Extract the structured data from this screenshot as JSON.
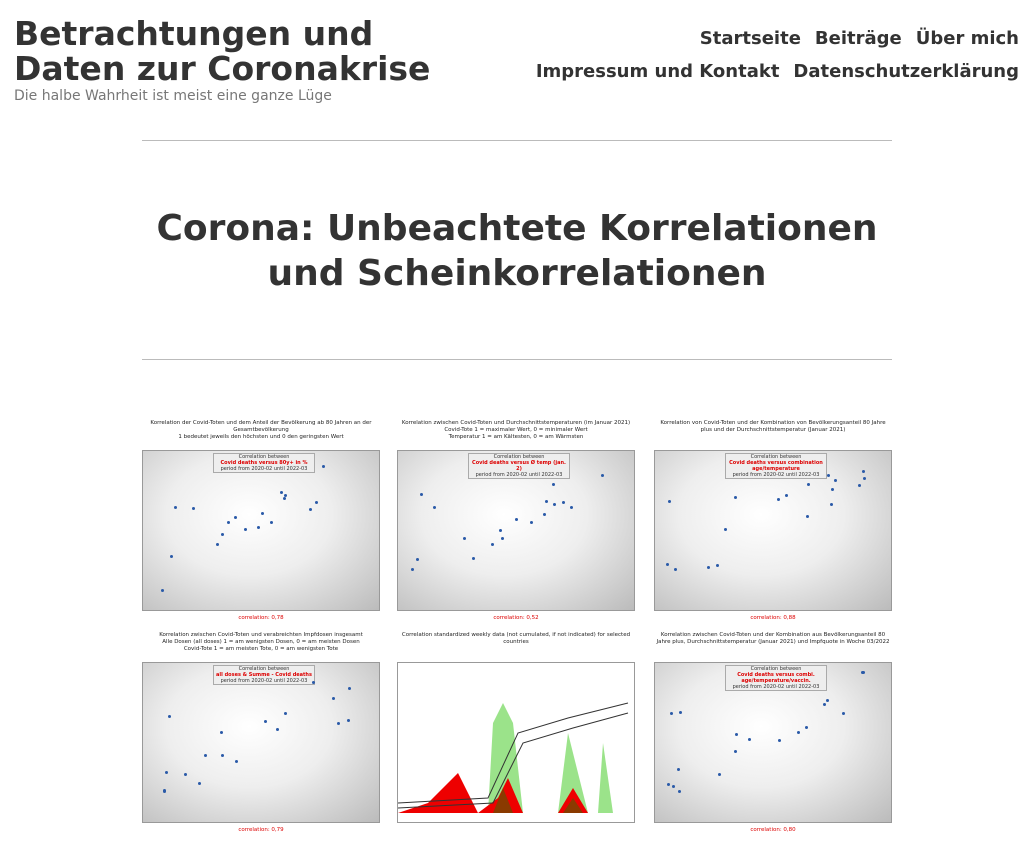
{
  "header": {
    "site_title": "Betrachtungen und Daten zur Coronakrise",
    "tagline": "Die halbe Wahrheit ist meist eine ganze Lüge"
  },
  "nav": {
    "row1": [
      "Startseite",
      "Beiträge",
      "Über mich"
    ],
    "row2": [
      "Impressum und Kontakt",
      "Datenschutzerklärung"
    ]
  },
  "post": {
    "title": "Corona: Unbeachtete Korrelationen und Scheinkorrelationen"
  },
  "thumbnails": [
    {
      "title": [
        "Korrelation der Covid-Toten und dem Anteil der Bevölkerung ab 80 Jahren an der",
        "Gesamtbevölkerung",
        "1 bedeutet jeweils den höchsten und 0 den geringsten Wert"
      ],
      "box": [
        "Correlation between",
        "Covid deaths versus 80y+ in %",
        "period from 2020-02 until 2022-03"
      ],
      "footer": "correlation: 0,78"
    },
    {
      "title": [
        "Korrelation zwischen Covid-Toten und Durchschnittstemperaturen (im Januar 2021)",
        "Covid-Tote 1 = maximaler Wert, 0 = minimaler Wert",
        "Temperatur 1 = am Kältesten, 0 = am Wärmsten"
      ],
      "box": [
        "Correlation between",
        "Covid deaths versus Ø temp (jan. 2)",
        "period from 2020-02 until 2022-03"
      ],
      "footer": "correlation: 0,52"
    },
    {
      "title": [
        "Korrelation von Covid-Toten und der Kombination von Bevölkerungsanteil 80 Jahre",
        "plus und der Durchschnittstemperatur (Januar 2021)"
      ],
      "box": [
        "Correlation between",
        "Covid deaths versus combination age/temperature",
        "period from 2020-02 until 2022-03"
      ],
      "footer": "correlation: 0,88"
    },
    {
      "title": [
        "Korrelation zwischen Covid-Toten und verabreichten Impfdosen insgesamt",
        "Alle Dosen (all doses) 1 = am wenigsten Dosen, 0 = am meisten Dosen",
        "Covid-Tote 1 = am meisten Tote, 0 = am wenigsten Tote"
      ],
      "box": [
        "Correlation between",
        "all doses & Summe - Covid deaths",
        "period from 2020-02 until 2022-03"
      ],
      "footer": "correlation: 0,79"
    },
    {
      "title": [
        "Correlation standardized weekly data (not cumulated, if not indicated) for selected countries"
      ]
    },
    {
      "title": [
        "Korrelation zwischen Covid-Toten und der Kombination aus Bevölkerungsanteil 80",
        "Jahre plus, Durchschnittstemperatur (Januar 2021) und Impfquote in Woche 03/2022"
      ],
      "box": [
        "Correlation between",
        "Covid deaths versus combi. age/temperature/vaccin.",
        "period from 2020-02 until 2022-03"
      ],
      "footer": "correlation: 0,80"
    }
  ]
}
